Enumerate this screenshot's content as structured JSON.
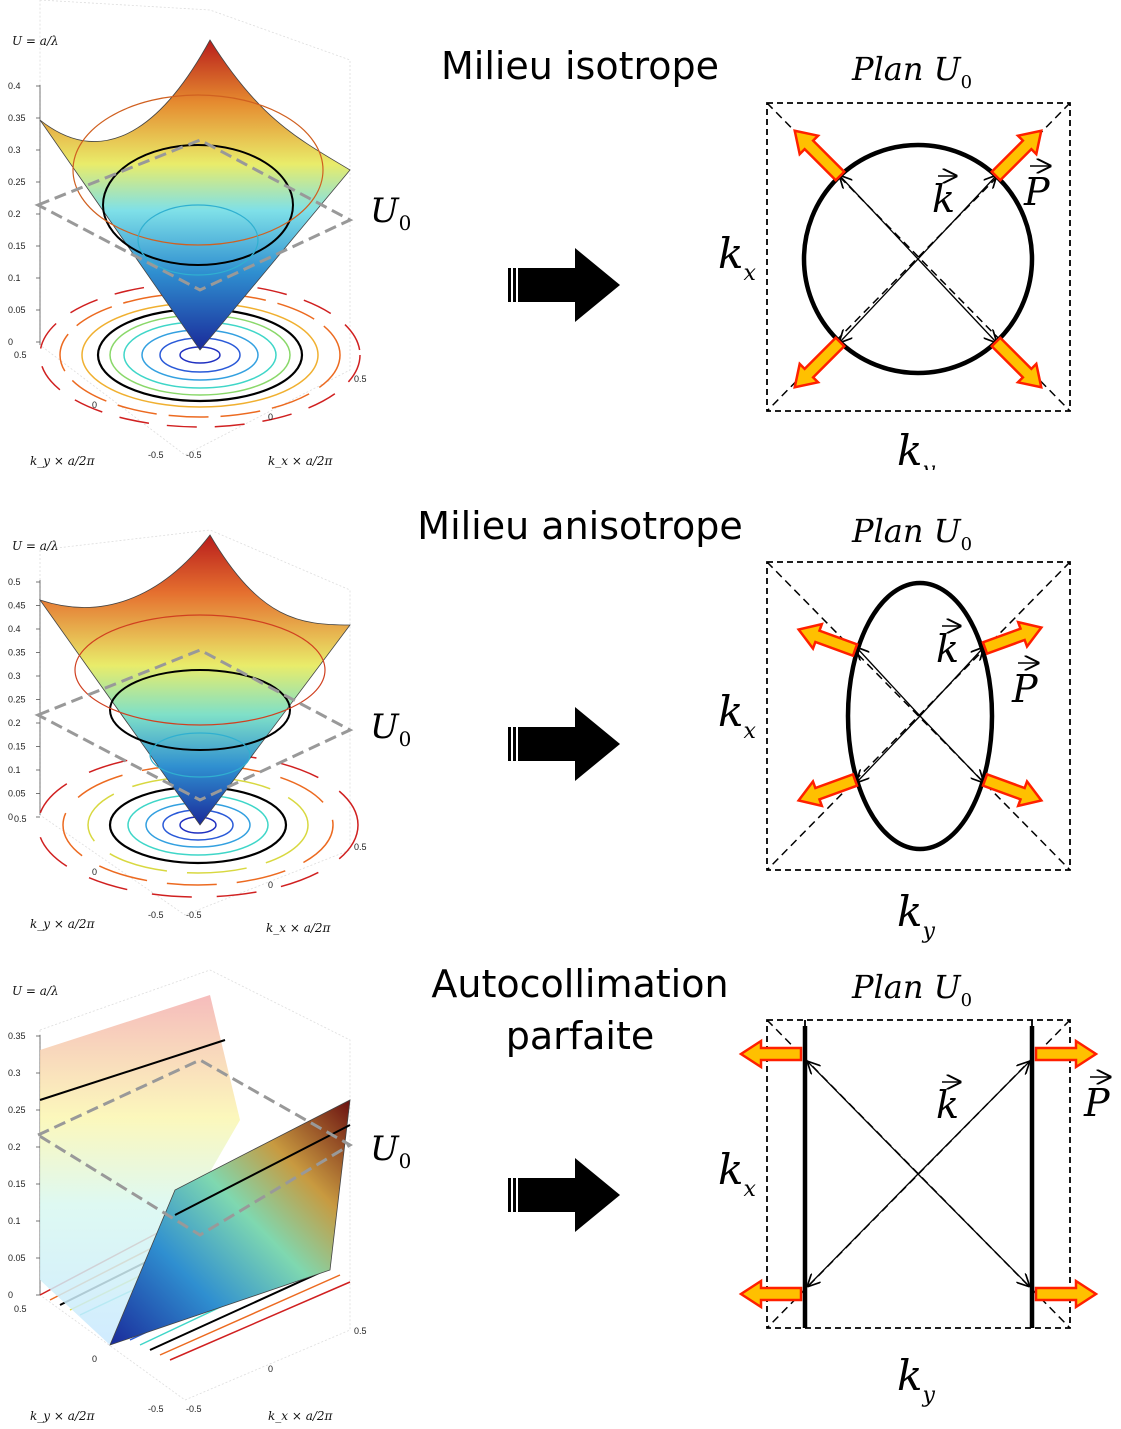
{
  "panels": [
    {
      "id": "isotropic",
      "title_lines": [
        "Milieu isotrope"
      ],
      "plan_label": "Plan  U",
      "plan_sub": "0",
      "u0_label": "U",
      "u0_sub": "0",
      "kx_label": "k",
      "kx_sub": "x",
      "ky_label": "k",
      "ky_sub": "y",
      "k_label": "k",
      "p_label": "P",
      "u_axis_label": "U = a/λ",
      "y_ticks": [
        "0.4",
        "0.35",
        "0.3",
        "0.25",
        "0.2",
        "0.15",
        "0.1",
        "0.05",
        "0"
      ],
      "ky_axis_label": "k_y × a/2π",
      "kx_axis_label": "k_x × a/2π",
      "ky_ticks": [
        "0.5",
        "0",
        "-0.5"
      ],
      "kx_ticks": [
        "0.5",
        "0",
        "-0.5"
      ],
      "contour": "circle"
    },
    {
      "id": "anisotropic",
      "title_lines": [
        "Milieu anisotrope"
      ],
      "plan_label": "Plan  U",
      "plan_sub": "0",
      "u0_label": "U",
      "u0_sub": "0",
      "kx_label": "k",
      "kx_sub": "x",
      "ky_label": "k",
      "ky_sub": "y",
      "k_label": "k",
      "p_label": "P",
      "u_axis_label": "U = a/λ",
      "y_ticks": [
        "0.5",
        "0.45",
        "0.4",
        "0.35",
        "0.3",
        "0.25",
        "0.2",
        "0.15",
        "0.1",
        "0.05",
        "0"
      ],
      "ky_axis_label": "k_y × a/2π",
      "kx_axis_label": "k_x × a/2π",
      "ky_ticks": [
        "0.5",
        "0",
        "-0.5"
      ],
      "kx_ticks": [
        "0.5",
        "0",
        "-0.5"
      ],
      "contour": "ellipse"
    },
    {
      "id": "autocollimation",
      "title_lines": [
        "Autocollimation",
        "parfaite"
      ],
      "plan_label": "Plan  U",
      "plan_sub": "0",
      "u0_label": "U",
      "u0_sub": "0",
      "kx_label": "k",
      "kx_sub": "x",
      "ky_label": "k",
      "ky_sub": "y",
      "k_label": "k",
      "p_label": "P",
      "u_axis_label": "U = a/λ",
      "y_ticks": [
        "0.35",
        "0.3",
        "0.25",
        "0.2",
        "0.15",
        "0.1",
        "0.05",
        "0"
      ],
      "ky_axis_label": "k_y × a/2π",
      "kx_axis_label": "k_x × a/2π",
      "ky_ticks": [
        "0.5",
        "0",
        "-0.5"
      ],
      "kx_ticks": [
        "0.5",
        "0",
        "-0.5"
      ],
      "contour": "lines"
    }
  ],
  "colors": {
    "arrow_fill": "#ffc000",
    "arrow_stroke": "#ff2000",
    "surface_low": "#1f3fbf",
    "surface_mid": "#d8e84a",
    "surface_high": "#c81e1e",
    "u0_plane": "#999999"
  }
}
